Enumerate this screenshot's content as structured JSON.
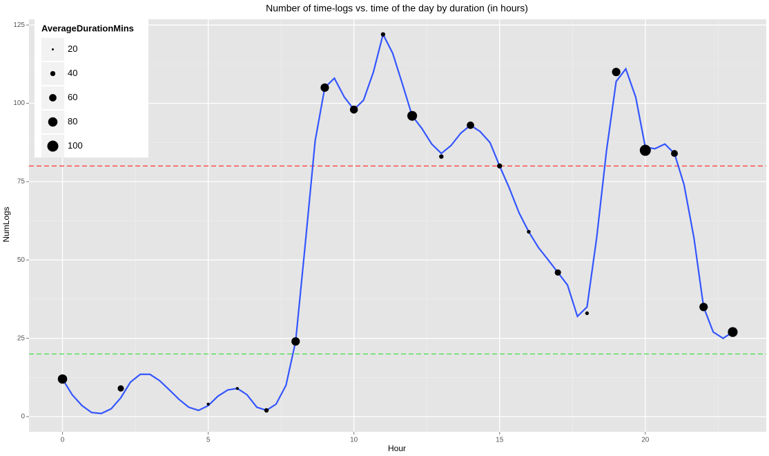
{
  "chart_data": {
    "type": "scatter",
    "title": "Number of time-logs vs. time of the day by duration (in hours)",
    "x_label": "Hour",
    "y_label": "NumLogs",
    "xlim": [
      -1.15,
      24.15
    ],
    "ylim": [
      -4.85,
      126.8
    ],
    "xticks": [
      0,
      5,
      10,
      15,
      20
    ],
    "yticks": [
      0,
      25,
      50,
      75,
      100,
      125
    ],
    "xminor": [
      2.5,
      7.5,
      12.5,
      17.5,
      22.5
    ],
    "yminor": [
      12.5,
      37.5,
      62.5,
      87.5,
      112.5
    ],
    "points": {
      "color": "#000000",
      "x": [
        0,
        2,
        5,
        6,
        7,
        8,
        9,
        10,
        11,
        12,
        13,
        14,
        15,
        16,
        17,
        18,
        19,
        20,
        21,
        22,
        23
      ],
      "values": [
        12,
        9,
        4,
        9,
        2,
        24,
        105,
        98,
        122,
        96,
        83,
        93,
        80,
        59,
        46,
        33,
        110,
        85,
        84,
        35,
        27
      ],
      "sizes": [
        80,
        50,
        25,
        25,
        35,
        70,
        70,
        65,
        35,
        85,
        35,
        60,
        40,
        30,
        50,
        30,
        70,
        100,
        55,
        70,
        85
      ]
    },
    "smooth": {
      "color": "#3355ff",
      "x": [
        0,
        0.33,
        0.67,
        1,
        1.33,
        1.67,
        2,
        2.33,
        2.67,
        3,
        3.33,
        3.67,
        4,
        4.33,
        4.67,
        5,
        5.33,
        5.67,
        6,
        6.33,
        6.67,
        7,
        7.33,
        7.67,
        8,
        8.33,
        8.67,
        9,
        9.33,
        9.67,
        10,
        10.33,
        10.67,
        11,
        11.33,
        11.67,
        12,
        12.33,
        12.67,
        13,
        13.33,
        13.67,
        14,
        14.33,
        14.67,
        15,
        15.33,
        15.67,
        16,
        16.33,
        16.67,
        17,
        17.33,
        17.67,
        18,
        18.33,
        18.67,
        19,
        19.33,
        19.67,
        20,
        20.33,
        20.67,
        21,
        21.33,
        21.67,
        22,
        22.33,
        22.67,
        23
      ],
      "values": [
        12,
        7,
        3.5,
        1.3,
        1,
        2.5,
        6,
        11,
        13.5,
        13.5,
        11.5,
        8.5,
        5.5,
        3,
        2,
        3.5,
        6.5,
        8.5,
        9,
        7,
        3,
        2,
        4,
        10,
        24,
        55,
        88,
        105,
        108,
        102,
        98,
        101,
        110,
        122,
        116,
        106,
        96,
        92,
        87,
        84,
        86.5,
        90.5,
        93,
        91,
        87.5,
        80,
        73,
        65,
        59,
        54,
        50,
        46,
        42,
        32,
        35,
        57,
        85,
        107,
        111,
        102,
        86,
        85.5,
        87,
        84,
        74,
        57,
        35,
        27,
        25,
        27
      ]
    },
    "hlines": [
      {
        "value": 80,
        "color": "#ff3333"
      },
      {
        "value": 20,
        "color": "#33dd33"
      }
    ],
    "size_legend": {
      "title": "AverageDurationMins",
      "values": [
        20,
        40,
        60,
        80,
        100
      ]
    }
  }
}
